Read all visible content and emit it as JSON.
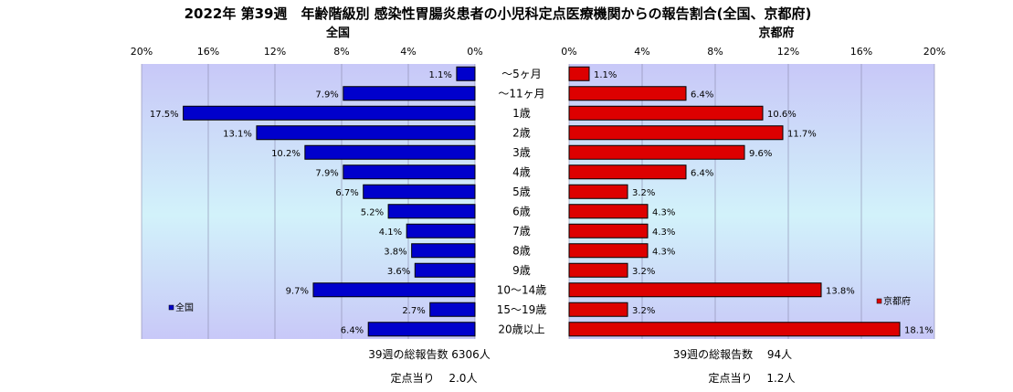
{
  "chart_data": {
    "type": "bar",
    "title": "2022年 第39週　年齢階級別 感染性胃腸炎患者の小児科定点医療機関からの報告割合(全国、京都府)",
    "categories": [
      "〜5ヶ月",
      "〜11ヶ月",
      "1歳",
      "2歳",
      "3歳",
      "4歳",
      "5歳",
      "6歳",
      "7歳",
      "8歳",
      "9歳",
      "10〜14歳",
      "15〜19歳",
      "20歳以上"
    ],
    "panels": [
      {
        "name": "全国",
        "legend": "全国",
        "color": "#0000cc",
        "direction": "left",
        "xlim": [
          0,
          20
        ],
        "ticks": [
          "20%",
          "16%",
          "12%",
          "8%",
          "4%",
          "0%"
        ],
        "values": [
          1.1,
          7.9,
          17.5,
          13.1,
          10.2,
          7.9,
          6.7,
          5.2,
          4.1,
          3.8,
          3.6,
          9.7,
          2.7,
          6.4
        ],
        "labels": [
          "1.1%",
          "7.9%",
          "17.5%",
          "13.1%",
          "10.2%",
          "7.9%",
          "6.7%",
          "5.2%",
          "4.1%",
          "3.8%",
          "3.6%",
          "9.7%",
          "2.7%",
          "6.4%"
        ],
        "total_text": "39週の総報告数 6306人",
        "per_point_text": "定点当り　 2.0人"
      },
      {
        "name": "京都府",
        "legend": "京都府",
        "color": "#dd0000",
        "direction": "right",
        "xlim": [
          0,
          20
        ],
        "ticks": [
          "0%",
          "4%",
          "8%",
          "12%",
          "16%",
          "20%"
        ],
        "values": [
          1.1,
          6.4,
          10.6,
          11.7,
          9.6,
          6.4,
          3.2,
          4.3,
          4.3,
          4.3,
          3.2,
          13.8,
          3.2,
          18.1
        ],
        "labels": [
          "1.1%",
          "6.4%",
          "10.6%",
          "11.7%",
          "9.6%",
          "6.4%",
          "3.2%",
          "4.3%",
          "4.3%",
          "4.3%",
          "3.2%",
          "13.8%",
          "3.2%",
          "18.1%"
        ],
        "total_text": "39週の総報告数　 94人",
        "per_point_text": "定点当り　 1.2人"
      }
    ],
    "grid": true,
    "legend_positions": [
      "bottom-left",
      "bottom-right"
    ]
  }
}
